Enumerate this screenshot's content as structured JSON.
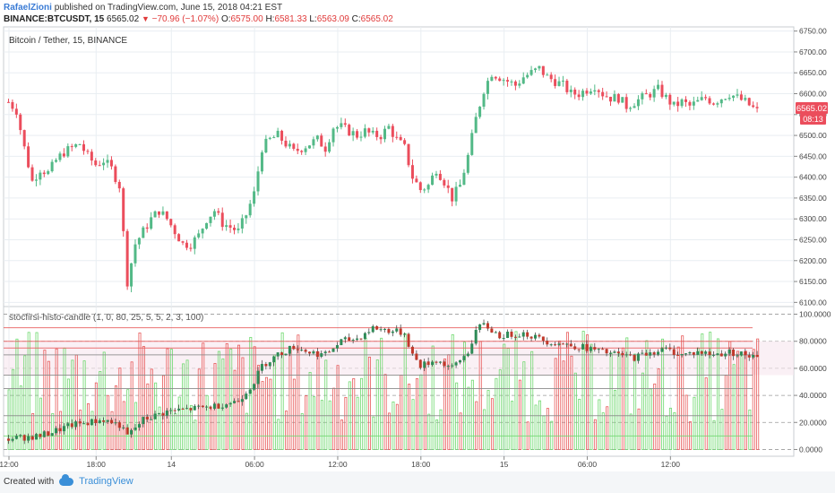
{
  "header": {
    "author": "RafaelZioni",
    "published": "published on TradingView.com, June 15, 2018 04:21 EST",
    "symbol": "BINANCE:BTCUSDT, 15",
    "last": "6565.02",
    "change": "−70.96 (−1.07%)",
    "o_label": "O:",
    "o_value": "6575.00",
    "h_label": "H:",
    "h_value": "6581.33",
    "l_label": "L:",
    "l_value": "6563.09",
    "c_label": "C:",
    "c_value": "6565.02"
  },
  "main_pane": {
    "title": "Bitcoin / Tether, 15, BINANCE",
    "price_badge": "6565.02",
    "time_badge": "08:13"
  },
  "indicator_pane": {
    "title": "stocfirsi-histo-candle (1, 0, 80, 25, 5, 5, 2, 3, 100)"
  },
  "footer": {
    "created_with": "Created with",
    "brand": "TradingView"
  },
  "colors": {
    "up": "#53b987",
    "down": "#eb4d5c",
    "grid": "#e9eef2",
    "axis_text": "#444444",
    "badge": "#eb4d5c",
    "hist_green": "#6fd86f",
    "hist_red": "#e85a5a"
  },
  "chart_data": [
    {
      "type": "candlestick",
      "title": "Bitcoin / Tether, 15, BINANCE",
      "y_axis_ticks": [
        6100,
        6150,
        6200,
        6250,
        6300,
        6350,
        6400,
        6450,
        6500,
        6550,
        6600,
        6650,
        6700,
        6750
      ],
      "y_tick_labels": [
        "6100.00",
        "6150.00",
        "6200.00",
        "6250.00",
        "6300.00",
        "6350.00",
        "6400.00",
        "6450.00",
        "6500.00",
        "6550.00",
        "6600.00",
        "6650.00",
        "6700.00",
        "6750.00"
      ],
      "ylim": [
        6090,
        6760
      ],
      "x_tick_labels": [
        "12:00",
        "18:00",
        "14",
        "06:00",
        "12:00",
        "18:00",
        "15",
        "06:00",
        "12:00"
      ],
      "last_price": 6565.02,
      "close_path": [
        [
          0,
          6580
        ],
        [
          2,
          6560
        ],
        [
          4,
          6470
        ],
        [
          6,
          6390
        ],
        [
          8,
          6420
        ],
        [
          10,
          6410
        ],
        [
          12,
          6440
        ],
        [
          14,
          6460
        ],
        [
          16,
          6470
        ],
        [
          18,
          6480
        ],
        [
          20,
          6450
        ],
        [
          22,
          6430
        ],
        [
          24,
          6440
        ],
        [
          26,
          6420
        ],
        [
          28,
          6380
        ],
        [
          30,
          6150
        ],
        [
          32,
          6240
        ],
        [
          34,
          6270
        ],
        [
          36,
          6300
        ],
        [
          38,
          6320
        ],
        [
          40,
          6300
        ],
        [
          42,
          6270
        ],
        [
          44,
          6240
        ],
        [
          46,
          6240
        ],
        [
          48,
          6260
        ],
        [
          50,
          6300
        ],
        [
          52,
          6320
        ],
        [
          54,
          6290
        ],
        [
          56,
          6280
        ],
        [
          58,
          6270
        ],
        [
          60,
          6310
        ],
        [
          62,
          6360
        ],
        [
          64,
          6470
        ],
        [
          66,
          6490
        ],
        [
          68,
          6500
        ],
        [
          70,
          6480
        ],
        [
          72,
          6460
        ],
        [
          74,
          6470
        ],
        [
          76,
          6480
        ],
        [
          78,
          6490
        ],
        [
          80,
          6470
        ],
        [
          82,
          6520
        ],
        [
          84,
          6520
        ],
        [
          86,
          6510
        ],
        [
          88,
          6500
        ],
        [
          90,
          6510
        ],
        [
          92,
          6500
        ],
        [
          94,
          6500
        ],
        [
          96,
          6520
        ],
        [
          98,
          6490
        ],
        [
          100,
          6470
        ],
        [
          102,
          6400
        ],
        [
          104,
          6370
        ],
        [
          106,
          6380
        ],
        [
          108,
          6420
        ],
        [
          110,
          6390
        ],
        [
          112,
          6350
        ],
        [
          114,
          6380
        ],
        [
          116,
          6450
        ],
        [
          118,
          6540
        ],
        [
          120,
          6610
        ],
        [
          122,
          6650
        ],
        [
          124,
          6640
        ],
        [
          126,
          6630
        ],
        [
          128,
          6620
        ],
        [
          130,
          6640
        ],
        [
          132,
          6650
        ],
        [
          134,
          6660
        ],
        [
          136,
          6640
        ],
        [
          138,
          6630
        ],
        [
          140,
          6620
        ],
        [
          142,
          6600
        ],
        [
          144,
          6600
        ],
        [
          146,
          6610
        ],
        [
          148,
          6620
        ],
        [
          150,
          6600
        ],
        [
          152,
          6590
        ],
        [
          154,
          6590
        ],
        [
          156,
          6570
        ],
        [
          158,
          6580
        ],
        [
          160,
          6590
        ],
        [
          162,
          6600
        ],
        [
          164,
          6610
        ],
        [
          166,
          6590
        ],
        [
          168,
          6570
        ],
        [
          170,
          6580
        ],
        [
          172,
          6570
        ],
        [
          174,
          6580
        ],
        [
          176,
          6590
        ],
        [
          178,
          6580
        ],
        [
          180,
          6590
        ],
        [
          182,
          6600
        ],
        [
          184,
          6590
        ],
        [
          186,
          6580
        ],
        [
          188,
          6565
        ]
      ],
      "candle_count": 190
    },
    {
      "type": "bar",
      "title": "stocfirsi-histo-candle (1, 0, 80, 25, 5, 5, 2, 3, 100)",
      "y_axis_ticks": [
        0,
        20,
        40,
        60,
        80,
        100
      ],
      "y_tick_labels": [
        "0.0000",
        "20.0000",
        "40.0000",
        "60.0000",
        "80.0000",
        "100.0000"
      ],
      "ylim": [
        -5,
        105
      ],
      "horizontal_levels": [
        90,
        80,
        75,
        70,
        55,
        45,
        25,
        10
      ],
      "oscillator_path": [
        [
          0,
          8
        ],
        [
          8,
          10
        ],
        [
          16,
          18
        ],
        [
          24,
          22
        ],
        [
          28,
          18
        ],
        [
          30,
          10
        ],
        [
          34,
          22
        ],
        [
          40,
          28
        ],
        [
          46,
          30
        ],
        [
          52,
          32
        ],
        [
          58,
          36
        ],
        [
          62,
          50
        ],
        [
          64,
          62
        ],
        [
          68,
          70
        ],
        [
          72,
          76
        ],
        [
          76,
          72
        ],
        [
          80,
          70
        ],
        [
          84,
          80
        ],
        [
          88,
          82
        ],
        [
          92,
          90
        ],
        [
          96,
          88
        ],
        [
          100,
          86
        ],
        [
          102,
          70
        ],
        [
          104,
          62
        ],
        [
          108,
          66
        ],
        [
          112,
          60
        ],
        [
          116,
          72
        ],
        [
          118,
          88
        ],
        [
          120,
          92
        ],
        [
          124,
          84
        ],
        [
          130,
          86
        ],
        [
          136,
          80
        ],
        [
          140,
          78
        ],
        [
          146,
          75
        ],
        [
          150,
          72
        ],
        [
          154,
          70
        ],
        [
          158,
          68
        ],
        [
          162,
          72
        ],
        [
          166,
          74
        ],
        [
          170,
          70
        ],
        [
          174,
          72
        ],
        [
          178,
          70
        ],
        [
          182,
          72
        ],
        [
          186,
          70
        ],
        [
          188,
          68
        ]
      ]
    }
  ]
}
